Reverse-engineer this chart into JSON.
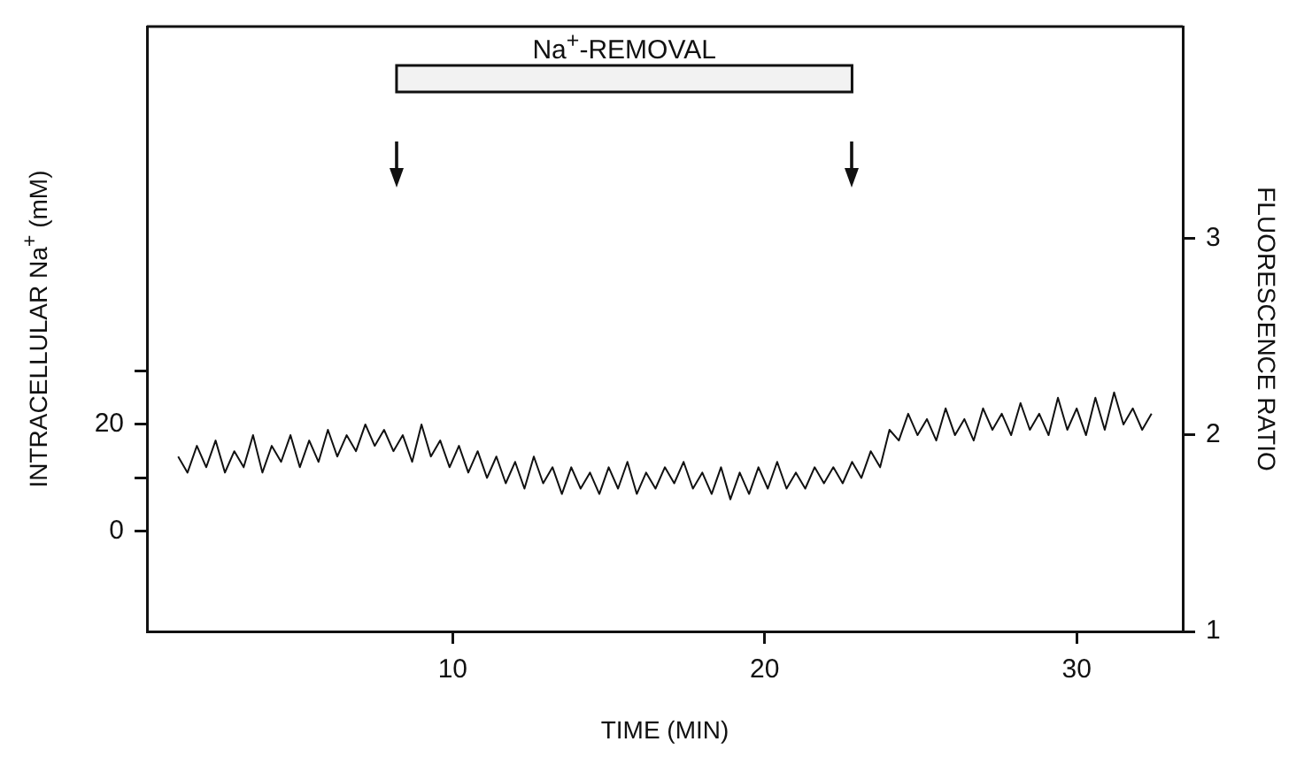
{
  "chart_data": {
    "type": "line",
    "xlabel": "TIME (MIN)",
    "ylabel": "INTRACELLULAR Na$^{+}$ (mM)",
    "y2label": "FLUORESCENCE RATIO",
    "x": [
      1.2,
      1.5,
      1.8,
      2.1,
      2.4,
      2.7,
      3.0,
      3.3,
      3.6,
      3.9,
      4.2,
      4.5,
      4.8,
      5.1,
      5.4,
      5.7,
      6.0,
      6.3,
      6.6,
      6.9,
      7.2,
      7.5,
      7.8,
      8.1,
      8.4,
      8.7,
      9.0,
      9.3,
      9.6,
      9.9,
      10.2,
      10.5,
      10.8,
      11.1,
      11.4,
      11.7,
      12.0,
      12.3,
      12.6,
      12.9,
      13.2,
      13.5,
      13.8,
      14.1,
      14.4,
      14.7,
      15.0,
      15.3,
      15.6,
      15.9,
      16.2,
      16.5,
      16.8,
      17.1,
      17.4,
      17.7,
      18.0,
      18.3,
      18.6,
      18.9,
      19.2,
      19.5,
      19.8,
      20.1,
      20.4,
      20.7,
      21.0,
      21.3,
      21.6,
      21.9,
      22.2,
      22.5,
      22.8,
      23.1,
      23.4,
      23.7,
      24.0,
      24.3,
      24.6,
      24.9,
      25.2,
      25.5,
      25.8,
      26.1,
      26.4,
      26.7,
      27.0,
      27.3,
      27.6,
      27.9,
      28.2,
      28.5,
      28.8,
      29.1,
      29.4,
      29.7,
      30.0,
      30.3,
      30.6,
      30.9,
      31.2,
      31.5,
      31.8,
      32.1,
      32.4
    ],
    "series": [
      {
        "color": "#111111",
        "values": [
          14,
          11,
          16,
          12,
          17,
          11,
          15,
          12,
          18,
          11,
          16,
          13,
          18,
          12,
          17,
          13,
          19,
          14,
          18,
          15,
          20,
          16,
          19,
          15,
          18,
          13,
          20,
          14,
          17,
          12,
          16,
          11,
          15,
          10,
          14,
          9,
          13,
          8,
          14,
          9,
          12,
          7,
          12,
          8,
          11,
          7,
          12,
          8,
          13,
          7,
          11,
          8,
          12,
          9,
          13,
          8,
          11,
          7,
          12,
          6,
          11,
          7,
          12,
          8,
          13,
          8,
          11,
          8,
          12,
          9,
          12,
          9,
          13,
          10,
          15,
          12,
          19,
          17,
          22,
          18,
          21,
          17,
          23,
          18,
          21,
          17,
          23,
          19,
          22,
          18,
          24,
          19,
          22,
          18,
          25,
          19,
          23,
          18,
          25,
          19,
          26,
          20,
          23,
          19,
          22
        ]
      }
    ],
    "xlim": [
      0.2,
      33.4
    ],
    "xticks": [
      10,
      20,
      30
    ],
    "ylim": [
      -18.7,
      94.4
    ],
    "yticks": [
      0,
      {
        "value": 10,
        "label": null
      },
      20,
      {
        "value": 30,
        "label": null
      }
    ],
    "y2lim": [
      1,
      4.08
    ],
    "y2ticks": [
      1,
      2,
      3
    ],
    "bands": [
      {
        "axis": "x",
        "from": 8.2,
        "to": 22.8,
        "label": "Na$^{+}$-REMOVAL"
      }
    ],
    "grid": false,
    "legend": false,
    "marker": "none",
    "line_style": "solid"
  }
}
